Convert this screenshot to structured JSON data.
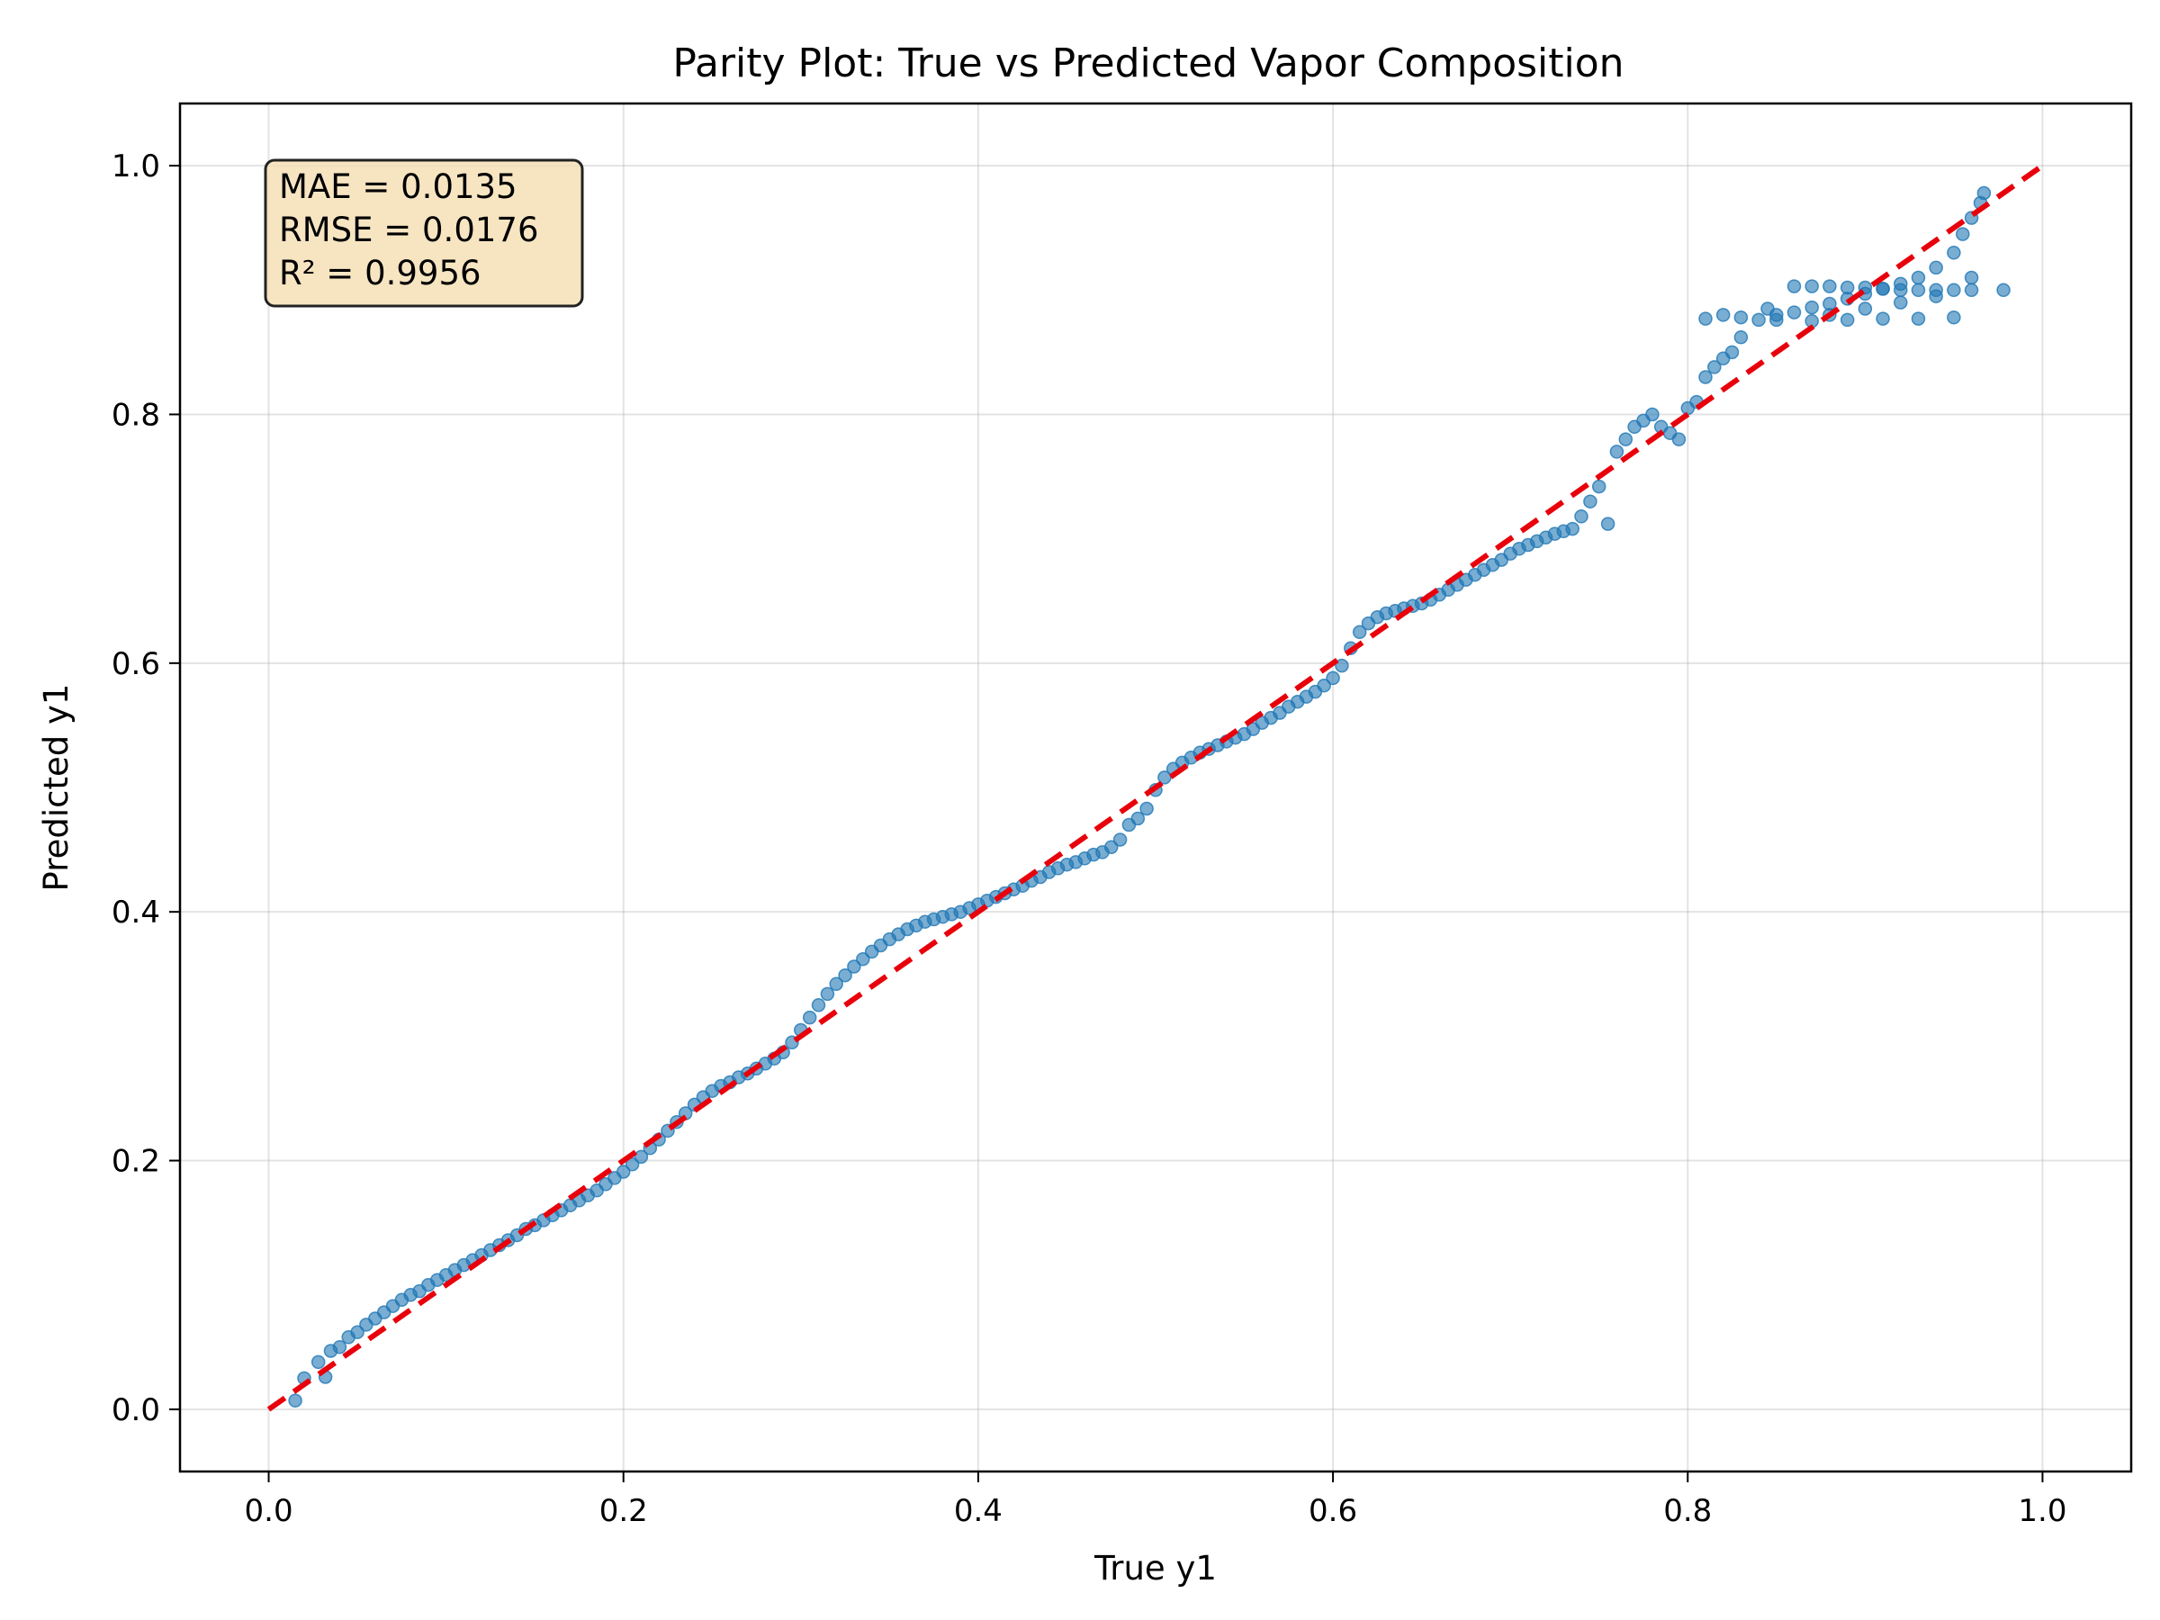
{
  "chart_data": {
    "type": "scatter",
    "title": "Parity Plot: True vs Predicted Vapor Composition",
    "xlabel": "True y1",
    "ylabel": "Predicted y1",
    "xlim": [
      -0.05,
      1.05
    ],
    "ylim": [
      -0.05,
      1.05
    ],
    "xticks": [
      "0.0",
      "0.2",
      "0.4",
      "0.6",
      "0.8",
      "1.0"
    ],
    "yticks": [
      "0.0",
      "0.2",
      "0.4",
      "0.6",
      "0.8",
      "1.0"
    ],
    "grid": true,
    "stats": {
      "mae": "MAE = 0.0135",
      "rmse": "RMSE = 0.0176",
      "r2": "R² = 0.9956"
    },
    "parity_line": {
      "x": [
        0.0,
        1.0
      ],
      "y": [
        0.0,
        1.0
      ],
      "color": "#e8000b",
      "style": "dashed"
    },
    "series": [
      {
        "color": "#1f77b4",
        "points": [
          [
            0.015,
            0.007
          ],
          [
            0.02,
            0.025
          ],
          [
            0.028,
            0.038
          ],
          [
            0.032,
            0.026
          ],
          [
            0.035,
            0.047
          ],
          [
            0.04,
            0.05
          ],
          [
            0.045,
            0.058
          ],
          [
            0.05,
            0.062
          ],
          [
            0.055,
            0.068
          ],
          [
            0.06,
            0.073
          ],
          [
            0.065,
            0.078
          ],
          [
            0.07,
            0.083
          ],
          [
            0.075,
            0.088
          ],
          [
            0.08,
            0.092
          ],
          [
            0.085,
            0.095
          ],
          [
            0.09,
            0.1
          ],
          [
            0.095,
            0.104
          ],
          [
            0.1,
            0.108
          ],
          [
            0.105,
            0.112
          ],
          [
            0.11,
            0.116
          ],
          [
            0.115,
            0.12
          ],
          [
            0.12,
            0.124
          ],
          [
            0.125,
            0.128
          ],
          [
            0.13,
            0.132
          ],
          [
            0.135,
            0.136
          ],
          [
            0.14,
            0.14
          ],
          [
            0.145,
            0.145
          ],
          [
            0.15,
            0.148
          ],
          [
            0.155,
            0.152
          ],
          [
            0.16,
            0.156
          ],
          [
            0.165,
            0.16
          ],
          [
            0.17,
            0.164
          ],
          [
            0.175,
            0.168
          ],
          [
            0.18,
            0.172
          ],
          [
            0.185,
            0.176
          ],
          [
            0.19,
            0.181
          ],
          [
            0.195,
            0.186
          ],
          [
            0.2,
            0.191
          ],
          [
            0.205,
            0.197
          ],
          [
            0.21,
            0.203
          ],
          [
            0.215,
            0.21
          ],
          [
            0.22,
            0.217
          ],
          [
            0.225,
            0.224
          ],
          [
            0.23,
            0.231
          ],
          [
            0.235,
            0.238
          ],
          [
            0.24,
            0.245
          ],
          [
            0.245,
            0.251
          ],
          [
            0.25,
            0.256
          ],
          [
            0.255,
            0.26
          ],
          [
            0.26,
            0.263
          ],
          [
            0.265,
            0.267
          ],
          [
            0.27,
            0.27
          ],
          [
            0.275,
            0.274
          ],
          [
            0.28,
            0.278
          ],
          [
            0.285,
            0.282
          ],
          [
            0.29,
            0.287
          ],
          [
            0.295,
            0.295
          ],
          [
            0.3,
            0.305
          ],
          [
            0.305,
            0.315
          ],
          [
            0.31,
            0.325
          ],
          [
            0.315,
            0.334
          ],
          [
            0.32,
            0.342
          ],
          [
            0.325,
            0.349
          ],
          [
            0.33,
            0.356
          ],
          [
            0.335,
            0.362
          ],
          [
            0.34,
            0.368
          ],
          [
            0.345,
            0.373
          ],
          [
            0.35,
            0.378
          ],
          [
            0.355,
            0.382
          ],
          [
            0.36,
            0.386
          ],
          [
            0.365,
            0.389
          ],
          [
            0.37,
            0.392
          ],
          [
            0.375,
            0.394
          ],
          [
            0.38,
            0.396
          ],
          [
            0.385,
            0.398
          ],
          [
            0.39,
            0.4
          ],
          [
            0.395,
            0.403
          ],
          [
            0.4,
            0.406
          ],
          [
            0.405,
            0.409
          ],
          [
            0.41,
            0.412
          ],
          [
            0.415,
            0.415
          ],
          [
            0.42,
            0.418
          ],
          [
            0.425,
            0.421
          ],
          [
            0.43,
            0.425
          ],
          [
            0.435,
            0.428
          ],
          [
            0.44,
            0.432
          ],
          [
            0.445,
            0.435
          ],
          [
            0.45,
            0.438
          ],
          [
            0.455,
            0.44
          ],
          [
            0.46,
            0.443
          ],
          [
            0.465,
            0.446
          ],
          [
            0.47,
            0.448
          ],
          [
            0.475,
            0.452
          ],
          [
            0.48,
            0.458
          ],
          [
            0.485,
            0.47
          ],
          [
            0.49,
            0.475
          ],
          [
            0.495,
            0.483
          ],
          [
            0.5,
            0.498
          ],
          [
            0.505,
            0.508
          ],
          [
            0.51,
            0.515
          ],
          [
            0.515,
            0.52
          ],
          [
            0.52,
            0.524
          ],
          [
            0.525,
            0.528
          ],
          [
            0.53,
            0.531
          ],
          [
            0.535,
            0.534
          ],
          [
            0.54,
            0.537
          ],
          [
            0.545,
            0.54
          ],
          [
            0.55,
            0.543
          ],
          [
            0.555,
            0.547
          ],
          [
            0.56,
            0.552
          ],
          [
            0.565,
            0.556
          ],
          [
            0.57,
            0.56
          ],
          [
            0.575,
            0.565
          ],
          [
            0.58,
            0.569
          ],
          [
            0.585,
            0.573
          ],
          [
            0.59,
            0.577
          ],
          [
            0.595,
            0.582
          ],
          [
            0.6,
            0.588
          ],
          [
            0.605,
            0.598
          ],
          [
            0.61,
            0.612
          ],
          [
            0.615,
            0.625
          ],
          [
            0.62,
            0.632
          ],
          [
            0.625,
            0.637
          ],
          [
            0.63,
            0.64
          ],
          [
            0.635,
            0.642
          ],
          [
            0.64,
            0.644
          ],
          [
            0.645,
            0.646
          ],
          [
            0.65,
            0.648
          ],
          [
            0.655,
            0.651
          ],
          [
            0.66,
            0.655
          ],
          [
            0.665,
            0.659
          ],
          [
            0.67,
            0.663
          ],
          [
            0.675,
            0.667
          ],
          [
            0.68,
            0.671
          ],
          [
            0.685,
            0.675
          ],
          [
            0.69,
            0.679
          ],
          [
            0.695,
            0.683
          ],
          [
            0.7,
            0.688
          ],
          [
            0.705,
            0.692
          ],
          [
            0.71,
            0.695
          ],
          [
            0.715,
            0.698
          ],
          [
            0.72,
            0.701
          ],
          [
            0.725,
            0.704
          ],
          [
            0.73,
            0.706
          ],
          [
            0.735,
            0.708
          ],
          [
            0.74,
            0.718
          ],
          [
            0.745,
            0.73
          ],
          [
            0.75,
            0.742
          ],
          [
            0.755,
            0.712
          ],
          [
            0.76,
            0.77
          ],
          [
            0.765,
            0.78
          ],
          [
            0.77,
            0.79
          ],
          [
            0.775,
            0.795
          ],
          [
            0.78,
            0.8
          ],
          [
            0.785,
            0.79
          ],
          [
            0.79,
            0.785
          ],
          [
            0.795,
            0.78
          ],
          [
            0.8,
            0.805
          ],
          [
            0.805,
            0.81
          ],
          [
            0.81,
            0.83
          ],
          [
            0.815,
            0.838
          ],
          [
            0.82,
            0.845
          ],
          [
            0.825,
            0.85
          ],
          [
            0.83,
            0.862
          ],
          [
            0.81,
            0.877
          ],
          [
            0.82,
            0.88
          ],
          [
            0.83,
            0.878
          ],
          [
            0.84,
            0.876
          ],
          [
            0.845,
            0.885
          ],
          [
            0.85,
            0.88
          ],
          [
            0.86,
            0.882
          ],
          [
            0.87,
            0.886
          ],
          [
            0.88,
            0.889
          ],
          [
            0.89,
            0.893
          ],
          [
            0.9,
            0.897
          ],
          [
            0.91,
            0.901
          ],
          [
            0.92,
            0.905
          ],
          [
            0.93,
            0.91
          ],
          [
            0.94,
            0.918
          ],
          [
            0.95,
            0.93
          ],
          [
            0.955,
            0.945
          ],
          [
            0.96,
            0.958
          ],
          [
            0.965,
            0.97
          ],
          [
            0.967,
            0.978
          ],
          [
            0.86,
            0.903
          ],
          [
            0.87,
            0.903
          ],
          [
            0.88,
            0.903
          ],
          [
            0.89,
            0.902
          ],
          [
            0.9,
            0.902
          ],
          [
            0.91,
            0.901
          ],
          [
            0.92,
            0.9
          ],
          [
            0.93,
            0.9
          ],
          [
            0.94,
            0.9
          ],
          [
            0.95,
            0.9
          ],
          [
            0.96,
            0.9
          ],
          [
            0.978,
            0.9
          ],
          [
            0.85,
            0.876
          ],
          [
            0.87,
            0.875
          ],
          [
            0.89,
            0.876
          ],
          [
            0.91,
            0.877
          ],
          [
            0.93,
            0.877
          ],
          [
            0.95,
            0.878
          ],
          [
            0.88,
            0.88
          ],
          [
            0.9,
            0.885
          ],
          [
            0.92,
            0.89
          ],
          [
            0.94,
            0.895
          ],
          [
            0.96,
            0.91
          ]
        ]
      }
    ]
  }
}
